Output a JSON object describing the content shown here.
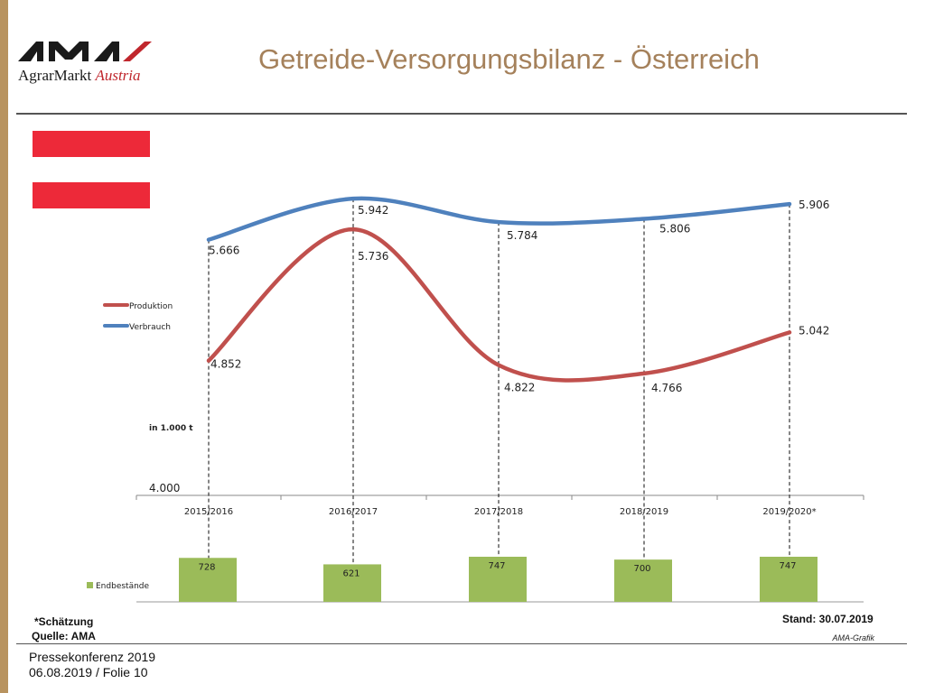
{
  "header": {
    "logo_brand": "AMA",
    "logo_text_1": "AgrarMarkt",
    "logo_text_2": "Austria",
    "title": "Getreide-Versorgungsbilanz - Österreich"
  },
  "colors": {
    "brand_red": "#c0272d",
    "title_color": "#a5815b",
    "produktion": "#c0504d",
    "verbrauch": "#4f81bd",
    "endbestaende": "#9bbb59",
    "flag_red": "#ed2939"
  },
  "chart_data": [
    {
      "type": "line",
      "categories": [
        "2015/2016",
        "2016/2017",
        "2017/2018",
        "2018/2019",
        "2019/2020*"
      ],
      "series": [
        {
          "name": "Produktion",
          "values": [
            4852,
            5736,
            4822,
            4766,
            5042
          ],
          "labels": [
            "4.852",
            "5.736",
            "4.822",
            "4.766",
            "5.042"
          ]
        },
        {
          "name": "Verbrauch",
          "values": [
            5666,
            5942,
            5784,
            5806,
            5906
          ],
          "labels": [
            "5.666",
            "5.942",
            "5.784",
            "5.806",
            "5.906"
          ]
        }
      ],
      "ylabel": "in 1.000 t",
      "y_min_label": "4.000",
      "ylim": [
        4000,
        6000
      ],
      "legend": "left"
    },
    {
      "type": "bar",
      "categories": [
        "2015/2016",
        "2016/2017",
        "2017/2018",
        "2018/2019",
        "2019/2020*"
      ],
      "series": [
        {
          "name": "Endbestände",
          "values": [
            728,
            621,
            747,
            700,
            747
          ],
          "labels": [
            "728",
            "621",
            "747",
            "700",
            "747"
          ]
        }
      ],
      "legend": "left"
    }
  ],
  "footer": {
    "note": "*Schätzung",
    "source": "Quelle: AMA",
    "stand": "Stand: 30.07.2019",
    "grafik": "AMA-Grafik",
    "line1": "Pressekonferenz 2019",
    "line2": "06.08.2019 / Folie 10"
  }
}
